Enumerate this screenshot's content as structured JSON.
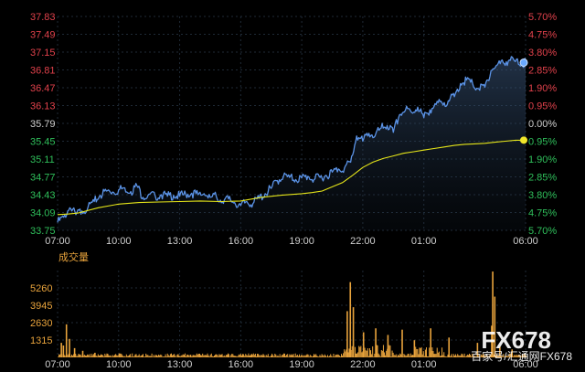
{
  "chart_data": {
    "type": "line",
    "title": "",
    "price_axis": {
      "ticks": [
        "37.83",
        "37.49",
        "37.15",
        "36.81",
        "36.47",
        "36.13",
        "35.79",
        "35.45",
        "35.11",
        "34.77",
        "34.43",
        "34.09",
        "33.75"
      ],
      "ylim": [
        33.75,
        37.83
      ],
      "reference": 35.79
    },
    "percent_axis": {
      "ticks": [
        "5.70%",
        "4.75%",
        "3.80%",
        "2.85%",
        "1.90%",
        "0.95%",
        "0.00%",
        "0.95%",
        "1.90%",
        "2.85%",
        "3.80%",
        "4.75%",
        "5.70%"
      ]
    },
    "time_axis": {
      "ticks": [
        "07:00",
        "10:00",
        "13:00",
        "16:00",
        "19:00",
        "22:00",
        "01:00",
        "06:00"
      ],
      "tick_hours": [
        0,
        3,
        6,
        9,
        12,
        15,
        18,
        23
      ],
      "xlim_hours": [
        0,
        23
      ]
    },
    "series": [
      {
        "color": "#5b93e6",
        "kind": "price",
        "points": [
          [
            0.0,
            33.9
          ],
          [
            0.3,
            34.0
          ],
          [
            0.6,
            34.18
          ],
          [
            0.9,
            34.05
          ],
          [
            1.2,
            34.12
          ],
          [
            1.5,
            34.2
          ],
          [
            1.8,
            34.3
          ],
          [
            2.1,
            34.42
          ],
          [
            2.4,
            34.5
          ],
          [
            2.7,
            34.48
          ],
          [
            3.0,
            34.52
          ],
          [
            3.3,
            34.56
          ],
          [
            3.6,
            34.49
          ],
          [
            3.9,
            34.6
          ],
          [
            4.2,
            34.38
          ],
          [
            4.5,
            34.44
          ],
          [
            4.8,
            34.4
          ],
          [
            5.1,
            34.43
          ],
          [
            5.4,
            34.4
          ],
          [
            5.7,
            34.42
          ],
          [
            6.0,
            34.4
          ],
          [
            6.3,
            34.44
          ],
          [
            6.6,
            34.46
          ],
          [
            6.9,
            34.43
          ],
          [
            7.2,
            34.45
          ],
          [
            7.5,
            34.38
          ],
          [
            7.8,
            34.4
          ],
          [
            8.1,
            34.3
          ],
          [
            8.4,
            34.35
          ],
          [
            8.7,
            34.28
          ],
          [
            9.0,
            34.22
          ],
          [
            9.3,
            34.3
          ],
          [
            9.6,
            34.26
          ],
          [
            9.9,
            34.36
          ],
          [
            10.2,
            34.45
          ],
          [
            10.5,
            34.55
          ],
          [
            10.8,
            34.7
          ],
          [
            11.1,
            34.78
          ],
          [
            11.4,
            34.76
          ],
          [
            11.7,
            34.72
          ],
          [
            12.0,
            34.75
          ],
          [
            12.3,
            34.78
          ],
          [
            12.6,
            34.72
          ],
          [
            12.9,
            34.76
          ],
          [
            13.2,
            34.8
          ],
          [
            13.5,
            34.86
          ],
          [
            13.8,
            34.92
          ],
          [
            14.1,
            34.94
          ],
          [
            14.4,
            35.05
          ],
          [
            14.7,
            35.55
          ],
          [
            15.0,
            35.45
          ],
          [
            15.3,
            35.6
          ],
          [
            15.6,
            35.55
          ],
          [
            15.9,
            35.7
          ],
          [
            16.2,
            35.75
          ],
          [
            16.5,
            35.62
          ],
          [
            16.8,
            35.95
          ],
          [
            17.1,
            36.05
          ],
          [
            17.4,
            36.0
          ],
          [
            17.7,
            36.1
          ],
          [
            18.0,
            35.9
          ],
          [
            18.3,
            36.05
          ],
          [
            18.6,
            36.15
          ],
          [
            18.9,
            36.18
          ],
          [
            19.2,
            36.22
          ],
          [
            19.5,
            36.3
          ],
          [
            19.8,
            36.55
          ],
          [
            20.1,
            36.62
          ],
          [
            20.4,
            36.55
          ],
          [
            20.7,
            36.45
          ],
          [
            21.0,
            36.48
          ],
          [
            21.3,
            36.8
          ],
          [
            21.6,
            36.9
          ],
          [
            21.9,
            36.95
          ],
          [
            22.2,
            37.0
          ],
          [
            22.5,
            36.97
          ],
          [
            22.8,
            36.92
          ],
          [
            23.0,
            36.95
          ]
        ]
      },
      {
        "color": "#e6e619",
        "kind": "average",
        "points": [
          [
            0.0,
            34.05
          ],
          [
            0.5,
            34.06
          ],
          [
            1.0,
            34.08
          ],
          [
            2.0,
            34.18
          ],
          [
            3.0,
            34.25
          ],
          [
            4.0,
            34.28
          ],
          [
            5.0,
            34.29
          ],
          [
            6.0,
            34.3
          ],
          [
            7.0,
            34.31
          ],
          [
            8.0,
            34.3
          ],
          [
            9.0,
            34.31
          ],
          [
            10.0,
            34.38
          ],
          [
            11.0,
            34.42
          ],
          [
            12.0,
            34.45
          ],
          [
            12.5,
            34.47
          ],
          [
            13.0,
            34.5
          ],
          [
            13.5,
            34.58
          ],
          [
            14.0,
            34.66
          ],
          [
            14.5,
            34.8
          ],
          [
            15.0,
            34.95
          ],
          [
            15.5,
            35.05
          ],
          [
            16.0,
            35.12
          ],
          [
            16.5,
            35.17
          ],
          [
            17.0,
            35.22
          ],
          [
            17.5,
            35.25
          ],
          [
            18.0,
            35.28
          ],
          [
            18.5,
            35.31
          ],
          [
            19.0,
            35.34
          ],
          [
            19.5,
            35.37
          ],
          [
            20.0,
            35.39
          ],
          [
            20.5,
            35.4
          ],
          [
            21.0,
            35.41
          ],
          [
            21.5,
            35.43
          ],
          [
            22.0,
            35.45
          ],
          [
            22.5,
            35.47
          ],
          [
            23.0,
            35.47
          ]
        ]
      }
    ],
    "volume": {
      "label": "成交量",
      "color": "#e8a33c",
      "ticks": [
        "5260",
        "3945",
        "2630",
        "1315"
      ],
      "ylim": [
        0,
        6575
      ],
      "spikes": [
        [
          0.15,
          1100
        ],
        [
          0.25,
          900
        ],
        [
          0.4,
          2500
        ],
        [
          0.55,
          1400
        ],
        [
          0.8,
          700
        ],
        [
          1.2,
          500
        ],
        [
          1.8,
          350
        ],
        [
          3.0,
          300
        ],
        [
          6.5,
          200
        ],
        [
          9.5,
          250
        ],
        [
          14.2,
          3500
        ],
        [
          14.35,
          5700
        ],
        [
          14.5,
          3800
        ],
        [
          15.0,
          1900
        ],
        [
          15.6,
          2200
        ],
        [
          16.2,
          1700
        ],
        [
          16.9,
          2100
        ],
        [
          17.5,
          1300
        ],
        [
          18.3,
          2200
        ],
        [
          19.2,
          1500
        ],
        [
          20.6,
          1100
        ],
        [
          21.3,
          2400
        ],
        [
          21.35,
          6500
        ],
        [
          21.45,
          4600
        ],
        [
          21.7,
          800
        ],
        [
          22.3,
          600
        ]
      ]
    }
  },
  "watermark": {
    "big": "FX678",
    "small": "百家号/汇通网FX678"
  }
}
